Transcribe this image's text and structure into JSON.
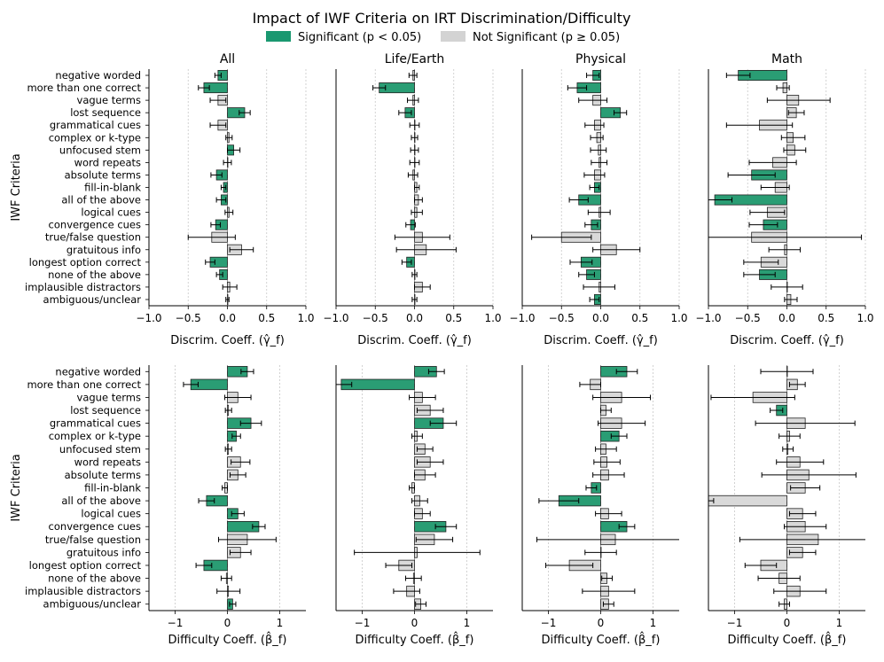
{
  "title": "Impact of IWF Criteria on IRT Discrimination/Difficulty",
  "legend": {
    "placement": "top-center",
    "items": [
      {
        "label": "Significant (p < 0.05)",
        "color": "#1a9870"
      },
      {
        "label": "Not Significant (p ≥ 0.05)",
        "color": "#d3d3d3"
      }
    ]
  },
  "colors": {
    "significant": "#2a9d74",
    "not_significant": "#d9d9d9",
    "edge": "#222222"
  },
  "chart_data": {
    "type": "bar",
    "orientation": "horizontal",
    "ylabel": "IWF Criteria",
    "categories": [
      "negative worded",
      "more than one correct",
      "vague terms",
      "lost sequence",
      "grammatical cues",
      "complex or k-type",
      "unfocused stem",
      "word repeats",
      "absolute terms",
      "fill-in-blank",
      "all of the above",
      "logical cues",
      "convergence cues",
      "true/false question",
      "gratuitous info",
      "longest option correct",
      "none of the above",
      "implausible distractors",
      "ambiguous/unclear"
    ],
    "panel_titles": [
      "All",
      "Life/Earth",
      "Physical",
      "Math"
    ],
    "rows": [
      {
        "xlabel": "Discrim. Coeff. (γ̂_f)",
        "xlim": [
          -1.0,
          1.0
        ],
        "ticks": [
          -1.0,
          -0.5,
          0.0,
          0.5,
          1.0
        ],
        "tick_labels": [
          "−1.0",
          "−0.5",
          "0.0",
          "0.5",
          "1.0"
        ],
        "panels": [
          {
            "name": "All",
            "values": [
              -0.12,
              -0.3,
              -0.12,
              0.22,
              -0.12,
              0.02,
              0.08,
              0.0,
              -0.14,
              -0.05,
              -0.08,
              0.02,
              -0.15,
              -0.2,
              0.18,
              -0.22,
              -0.1,
              0.03,
              0.0
            ],
            "err": [
              0.04,
              0.07,
              0.1,
              0.07,
              0.1,
              0.04,
              0.08,
              0.05,
              0.07,
              0.03,
              0.06,
              0.05,
              0.06,
              0.3,
              0.15,
              0.06,
              0.04,
              0.09,
              0.02
            ],
            "sig": [
              1,
              1,
              0,
              1,
              0,
              0,
              1,
              0,
              1,
              1,
              1,
              0,
              1,
              0,
              0,
              1,
              1,
              0,
              0
            ]
          },
          {
            "name": "Life/Earth",
            "values": [
              -0.02,
              -0.45,
              -0.02,
              -0.12,
              0.0,
              0.0,
              0.0,
              0.0,
              -0.02,
              0.03,
              0.05,
              0.03,
              -0.05,
              0.1,
              0.15,
              -0.1,
              0.0,
              0.1,
              0.0
            ],
            "err": [
              0.05,
              0.08,
              0.07,
              0.08,
              0.06,
              0.04,
              0.05,
              0.06,
              0.06,
              0.03,
              0.05,
              0.07,
              0.06,
              0.35,
              0.38,
              0.06,
              0.03,
              0.1,
              0.03
            ],
            "sig": [
              0,
              1,
              0,
              1,
              0,
              0,
              0,
              0,
              0,
              0,
              0,
              0,
              1,
              0,
              0,
              1,
              0,
              0,
              0
            ]
          },
          {
            "name": "Physical",
            "values": [
              -0.1,
              -0.3,
              -0.1,
              0.25,
              -0.08,
              -0.05,
              -0.03,
              -0.02,
              -0.08,
              -0.08,
              -0.28,
              -0.02,
              -0.12,
              -0.5,
              0.2,
              -0.25,
              -0.18,
              -0.02,
              -0.08
            ],
            "err": [
              0.08,
              0.12,
              0.18,
              0.08,
              0.12,
              0.08,
              0.1,
              0.1,
              0.13,
              0.06,
              0.12,
              0.14,
              0.08,
              0.38,
              0.3,
              0.14,
              0.1,
              0.2,
              0.06
            ],
            "sig": [
              1,
              1,
              0,
              1,
              0,
              0,
              0,
              0,
              0,
              1,
              1,
              0,
              1,
              0,
              0,
              1,
              1,
              0,
              1
            ]
          },
          {
            "name": "Math",
            "values": [
              -0.62,
              -0.05,
              0.15,
              0.12,
              -0.35,
              0.08,
              0.1,
              -0.18,
              -0.45,
              -0.15,
              -0.92,
              -0.25,
              -0.3,
              -0.45,
              -0.03,
              -0.33,
              -0.35,
              0.0,
              0.05
            ],
            "err": [
              0.15,
              0.08,
              0.4,
              0.1,
              0.42,
              0.15,
              0.14,
              0.3,
              0.3,
              0.18,
              0.22,
              0.22,
              0.18,
              1.4,
              0.2,
              0.22,
              0.2,
              0.2,
              0.08
            ],
            "sig": [
              1,
              0,
              0,
              0,
              0,
              0,
              0,
              0,
              1,
              0,
              1,
              0,
              1,
              0,
              0,
              0,
              1,
              0,
              0
            ]
          }
        ]
      },
      {
        "xlabel": "Difficulty Coeff. (β̂_f)",
        "xlim": [
          -1.5,
          1.5
        ],
        "ticks": [
          -1,
          0,
          1
        ],
        "tick_labels": [
          "−1",
          "0",
          "1"
        ],
        "panels": [
          {
            "name": "All",
            "values": [
              0.38,
              -0.7,
              0.2,
              0.02,
              0.45,
              0.17,
              0.02,
              0.25,
              0.2,
              -0.05,
              -0.4,
              0.2,
              0.6,
              0.38,
              0.25,
              -0.45,
              -0.02,
              0.02,
              0.1
            ],
            "err": [
              0.12,
              0.14,
              0.25,
              0.06,
              0.2,
              0.08,
              0.06,
              0.18,
              0.15,
              0.05,
              0.15,
              0.12,
              0.12,
              0.55,
              0.2,
              0.15,
              0.1,
              0.22,
              0.06
            ],
            "sig": [
              1,
              1,
              0,
              0,
              1,
              1,
              0,
              0,
              0,
              0,
              1,
              1,
              1,
              0,
              0,
              1,
              0,
              0,
              1
            ]
          },
          {
            "name": "Life/Earth",
            "values": [
              0.42,
              -1.4,
              0.15,
              0.3,
              0.55,
              0.05,
              0.2,
              0.3,
              0.2,
              -0.05,
              0.1,
              0.15,
              0.6,
              0.38,
              0.05,
              -0.3,
              -0.02,
              -0.15,
              0.12
            ],
            "err": [
              0.15,
              0.2,
              0.25,
              0.25,
              0.25,
              0.1,
              0.15,
              0.25,
              0.2,
              0.05,
              0.15,
              0.15,
              0.2,
              0.35,
              1.2,
              0.25,
              0.15,
              0.25,
              0.1
            ],
            "sig": [
              1,
              1,
              0,
              0,
              1,
              0,
              0,
              0,
              0,
              0,
              0,
              0,
              1,
              0,
              0,
              0,
              0,
              0,
              0
            ]
          },
          {
            "name": "Physical",
            "values": [
              0.5,
              -0.2,
              0.4,
              0.1,
              0.4,
              0.35,
              0.1,
              0.12,
              0.15,
              -0.18,
              -0.8,
              0.15,
              0.5,
              0.28,
              0.0,
              -0.6,
              0.12,
              0.15,
              0.15
            ],
            "err": [
              0.2,
              0.2,
              0.55,
              0.1,
              0.45,
              0.15,
              0.2,
              0.25,
              0.3,
              0.1,
              0.38,
              0.25,
              0.15,
              1.5,
              0.3,
              0.45,
              0.1,
              0.5,
              0.1
            ],
            "sig": [
              1,
              0,
              0,
              0,
              0,
              1,
              0,
              0,
              0,
              1,
              1,
              0,
              1,
              0,
              0,
              0,
              0,
              0,
              0
            ]
          },
          {
            "name": "Math",
            "values": [
              0.0,
              0.2,
              -0.65,
              -0.2,
              0.35,
              0.05,
              0.02,
              0.25,
              0.42,
              0.35,
              -1.5,
              0.3,
              0.35,
              0.6,
              0.3,
              -0.5,
              -0.15,
              0.25,
              -0.05
            ],
            "err": [
              0.5,
              0.15,
              0.8,
              0.12,
              0.95,
              0.2,
              0.1,
              0.45,
              0.9,
              0.28,
              0.1,
              0.25,
              0.4,
              1.5,
              0.25,
              0.3,
              0.4,
              0.5,
              0.1
            ],
            "sig": [
              0,
              0,
              0,
              1,
              0,
              0,
              0,
              0,
              0,
              0,
              0,
              0,
              0,
              0,
              0,
              0,
              0,
              0,
              0
            ]
          }
        ]
      }
    ]
  }
}
